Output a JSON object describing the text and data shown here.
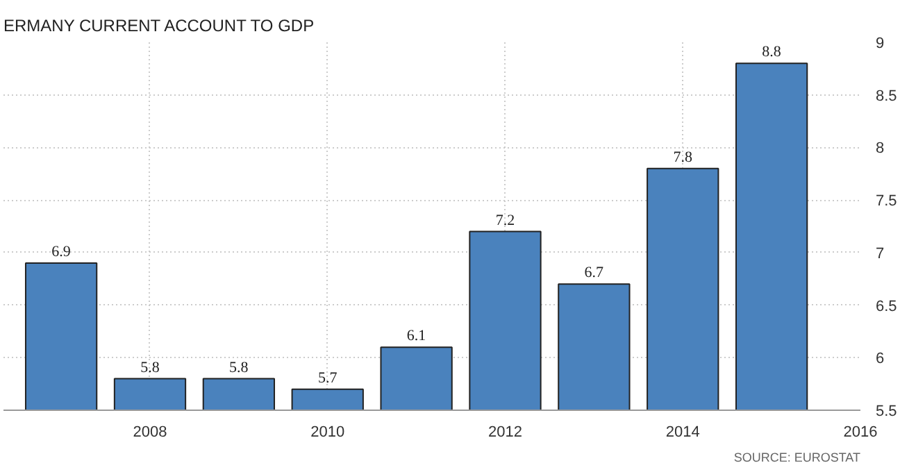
{
  "chart_data": {
    "type": "bar",
    "title": "ERMANY CURRENT ACCOUNT TO GDP",
    "x": [
      2007,
      2008,
      2009,
      2010,
      2011,
      2012,
      2013,
      2014,
      2015
    ],
    "values": [
      6.9,
      5.8,
      5.8,
      5.7,
      6.1,
      7.2,
      6.7,
      7.8,
      8.8
    ],
    "color": "#4a82bd",
    "xlim": [
      2006.35,
      2016
    ],
    "xticks": [
      2008,
      2010,
      2012,
      2014,
      2016
    ],
    "ylim": [
      5.5,
      9
    ],
    "yticks": [
      5.5,
      6,
      6.5,
      7,
      7.5,
      8,
      8.5,
      9
    ],
    "grid": true,
    "data_labels": true,
    "annotations": [
      "SOURCE: EUROSTAT"
    ]
  }
}
